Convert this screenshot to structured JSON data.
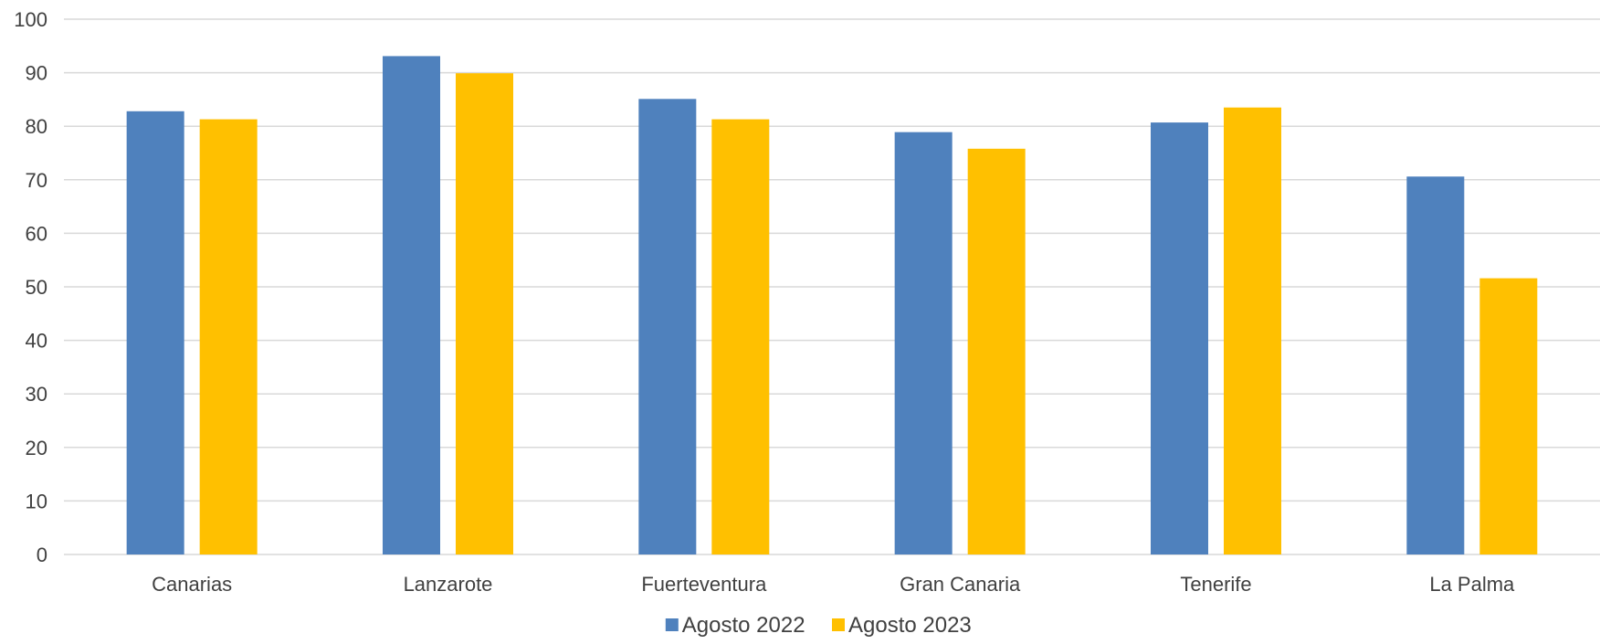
{
  "chart_data": {
    "type": "bar",
    "title": "",
    "xlabel": "",
    "ylabel": "",
    "categories": [
      "Canarias",
      "Lanzarote",
      "Fuerteventura",
      "Gran Canaria",
      "Tenerife",
      "La Palma"
    ],
    "series": [
      {
        "name": "Agosto 2022",
        "color": "#4f81bd",
        "values": [
          82.8,
          93.1,
          85.1,
          78.9,
          80.7,
          70.6
        ]
      },
      {
        "name": "Agosto 2023",
        "color": "#ffc000",
        "values": [
          81.3,
          89.9,
          81.3,
          75.8,
          83.5,
          51.6
        ]
      }
    ],
    "ylim": [
      0,
      100
    ],
    "yticks": [
      0,
      10,
      20,
      30,
      40,
      50,
      60,
      70,
      80,
      90,
      100
    ],
    "grid": true,
    "legend_position": "bottom"
  }
}
